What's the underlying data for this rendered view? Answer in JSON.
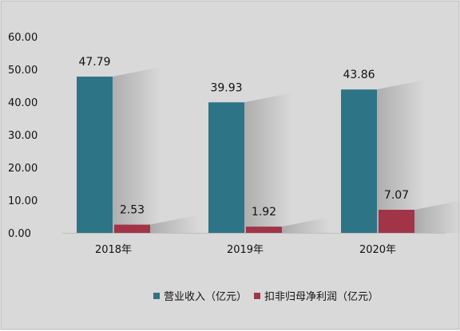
{
  "chart_data": {
    "type": "bar",
    "categories": [
      "2018年",
      "2019年",
      "2020年"
    ],
    "series": [
      {
        "name": "营业收入（亿元）",
        "values": [
          47.79,
          39.93,
          43.86
        ],
        "labels": [
          "47.79",
          "39.93",
          "43.86"
        ],
        "color": "#2e7487"
      },
      {
        "name": "扣非归母净利润（亿元）",
        "values": [
          2.53,
          1.92,
          7.07
        ],
        "labels": [
          "2.53",
          "1.92",
          "7.07"
        ],
        "color": "#a23447"
      }
    ],
    "y_ticks": [
      "0.00",
      "10.00",
      "20.00",
      "30.00",
      "40.00",
      "50.00",
      "60.00"
    ],
    "ylim": [
      0,
      60
    ],
    "grid": false,
    "legend_position": "bottom-center",
    "background_color": "#d9d9d9",
    "title": "",
    "xlabel": "",
    "ylabel": ""
  }
}
